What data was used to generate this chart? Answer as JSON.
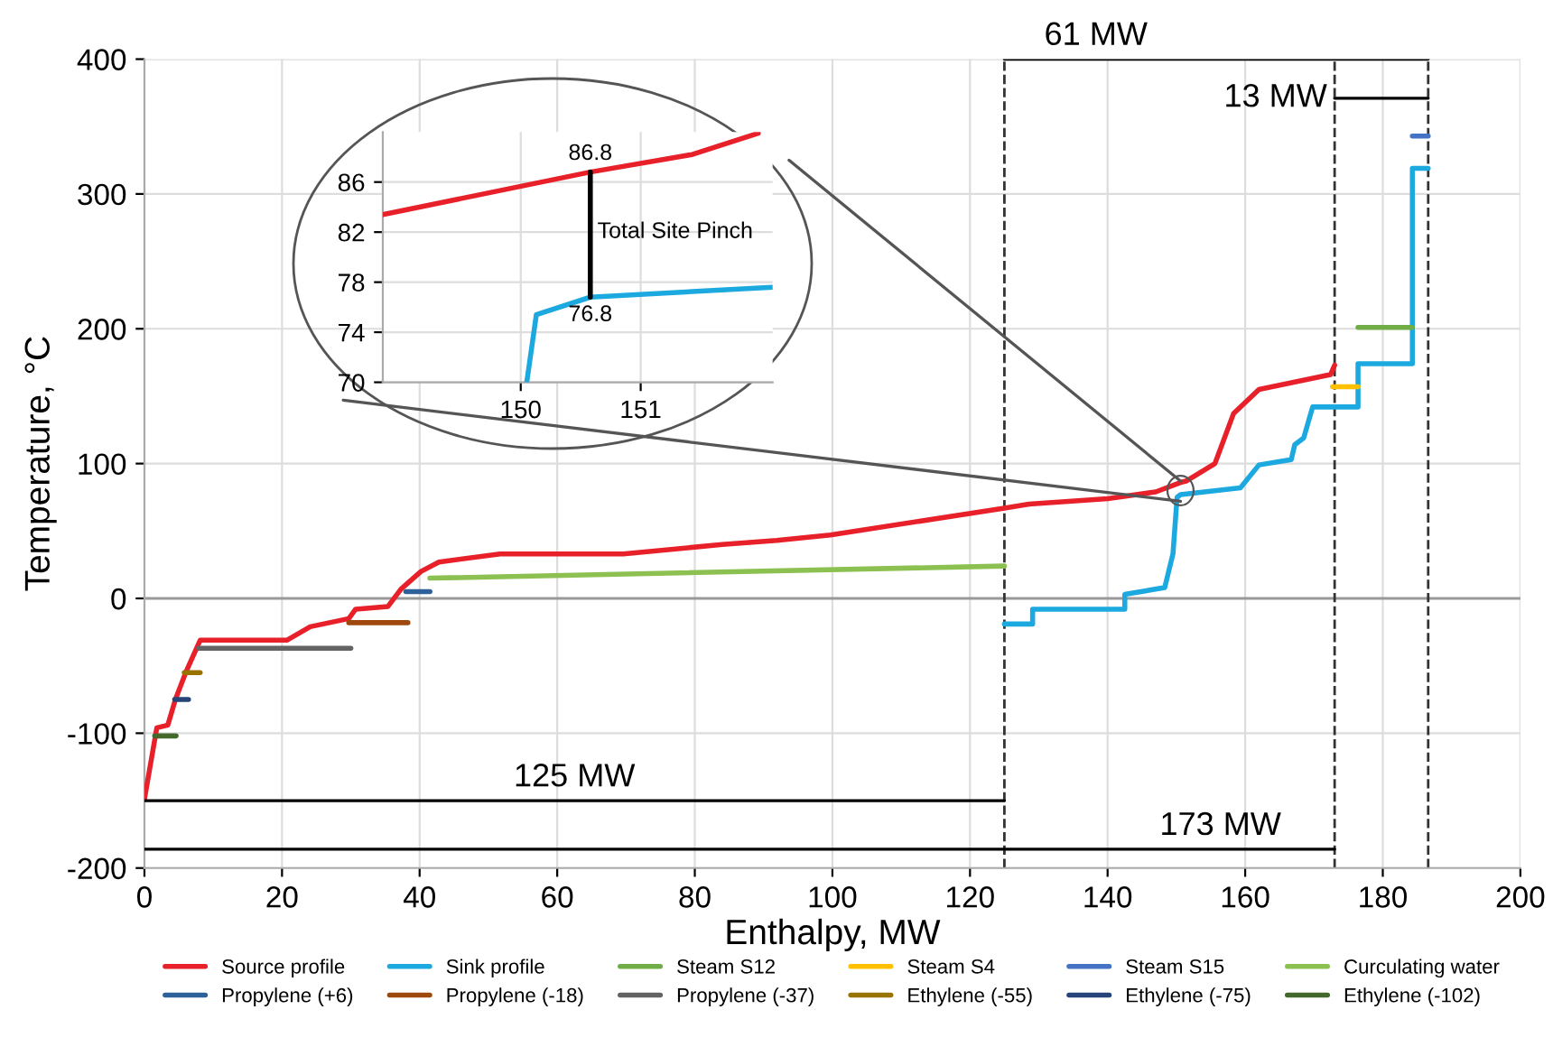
{
  "chart_data": [
    {
      "type": "line",
      "xlabel": "Enthalpy, MW",
      "ylabel": "Temperature, °C",
      "xlim": [
        0,
        200
      ],
      "xticks": [
        0,
        20,
        40,
        60,
        80,
        100,
        120,
        140,
        160,
        180,
        200
      ],
      "ylim": [
        -200,
        400
      ],
      "yticks": [
        -200,
        -100,
        0,
        100,
        200,
        300,
        400
      ],
      "grid": true,
      "legend": "bottom",
      "series": [
        {
          "name": "Source profile",
          "color": "#e8202a",
          "x": [
            0,
            1.8,
            3.4,
            4.5,
            6,
            8.1,
            20.7,
            24.1,
            29.7,
            30.7,
            35.4,
            37.3,
            40.2,
            42.8,
            51.7,
            69.6,
            84,
            91.9,
            99.7,
            125,
            128.6,
            140,
            147,
            150.6,
            151.4,
            155.6,
            158.3,
            162,
            172.4,
            173
          ],
          "values": [
            -149,
            -96,
            -94,
            -75,
            -55,
            -31,
            -31,
            -21,
            -15,
            -8,
            -6,
            7,
            20,
            27,
            33,
            33,
            40,
            43,
            47,
            67,
            70,
            74,
            79,
            86,
            87,
            100,
            137,
            155,
            166,
            173
          ]
        },
        {
          "name": "Sink profile",
          "color": "#1ba9e0",
          "x": [
            125,
            129.1,
            129.1,
            142.5,
            142.5,
            148.3,
            149.5,
            150.1,
            150.6,
            159.3,
            162,
            166.7,
            167.2,
            168.5,
            169.8,
            176.4,
            176.4,
            184.3,
            184.3,
            186.6
          ],
          "values": [
            -19,
            -19,
            -8,
            -8,
            3,
            8,
            33,
            75,
            77,
            82,
            99,
            103,
            114,
            119,
            142,
            142,
            174,
            174,
            319,
            319
          ]
        },
        {
          "name": "Steam S12",
          "color": "#70ad47",
          "x": [
            176.4,
            184.3
          ],
          "values": [
            201,
            201
          ]
        },
        {
          "name": "Steam S4",
          "color": "#ffc000",
          "x": [
            172.7,
            176.4
          ],
          "values": [
            157,
            157
          ]
        },
        {
          "name": "Steam S15",
          "color": "#4472c4",
          "x": [
            184.3,
            186.6
          ],
          "values": [
            343,
            343
          ]
        },
        {
          "name": "Curculating water",
          "color": "#8cc152",
          "x": [
            41.5,
            125
          ],
          "values": [
            15,
            24
          ]
        },
        {
          "name": "Propylene (+6)",
          "color": "#2e6099",
          "x": [
            38,
            41.5
          ],
          "values": [
            5,
            5
          ]
        },
        {
          "name": "Propylene (-18)",
          "color": "#9e480e",
          "x": [
            29.7,
            38.3
          ],
          "values": [
            -18,
            -18
          ]
        },
        {
          "name": "Propylene (-37)",
          "color": "#636363",
          "x": [
            7.9,
            30
          ],
          "values": [
            -37,
            -37
          ]
        },
        {
          "name": "Ethylene (-55)",
          "color": "#997300",
          "x": [
            5.8,
            8.1
          ],
          "values": [
            -55,
            -55
          ]
        },
        {
          "name": "Ethylene (-75)",
          "color": "#264478",
          "x": [
            4.4,
            6.4
          ],
          "values": [
            -75,
            -75
          ]
        },
        {
          "name": "Ethylene (-102)",
          "color": "#43682b",
          "x": [
            1.5,
            4.6
          ],
          "values": [
            -102,
            -102
          ]
        },
        {
          "color": "#555555",
          "x": [
            93.7,
            150.6
          ],
          "values": [
            325,
            87
          ]
        },
        {
          "color": "#555555",
          "x": [
            28.9,
            150.6
          ],
          "values": [
            147,
            72
          ]
        },
        {
          "color": "#000000",
          "x": [
            125,
            186.6
          ],
          "values": [
            400,
            400
          ]
        },
        {
          "color": "#000000",
          "x": [
            173,
            186.6
          ],
          "values": [
            371,
            371
          ]
        },
        {
          "color": "#000000",
          "x": [
            0,
            125
          ],
          "values": [
            -150,
            -150
          ]
        },
        {
          "color": "#000000",
          "x": [
            0,
            173
          ],
          "values": [
            -186,
            -186
          ]
        }
      ],
      "ref_lines": [
        {
          "axis": "y",
          "value": 0,
          "color": "#999999",
          "line_style": "solid"
        },
        {
          "axis": "x",
          "value": 125,
          "color": "#333333",
          "line_style": "dashed"
        },
        {
          "axis": "x",
          "value": 173,
          "color": "#333333",
          "line_style": "dashed"
        },
        {
          "axis": "x",
          "value": 186.6,
          "color": "#333333",
          "line_style": "dashed"
        }
      ],
      "annotations": [
        {
          "text": "61 MW",
          "x": 138.3,
          "y": 400
        },
        "13 MW",
        {
          "text": "125 MW",
          "x": 62.5,
          "y": -150
        },
        {
          "text": "173 MW",
          "x": 156.4,
          "y": -186
        }
      ]
    },
    {
      "type": "line",
      "xlim": [
        148.85,
        152.1
      ],
      "xticks": [
        150,
        151
      ],
      "ylim": [
        70,
        90
      ],
      "yticks": [
        70,
        74,
        78,
        82,
        86
      ],
      "grid": true,
      "series": [
        {
          "color": "#e8202a",
          "x": [
            148.85,
            150.58,
            151.43,
            151.98
          ],
          "values": [
            83.4,
            86.8,
            88.2,
            89.9
          ]
        },
        {
          "color": "#1ba9e0",
          "x": [
            150.05,
            150.13,
            150.58,
            152.1
          ],
          "values": [
            70,
            75.4,
            76.8,
            77.6
          ]
        },
        {
          "color": "#000000",
          "x": [
            150.58,
            150.58
          ],
          "values": [
            76.8,
            86.8
          ]
        }
      ],
      "annotations": [
        {
          "text": "86.8",
          "x": 150.58,
          "y": 86.8
        },
        {
          "text": "76.8",
          "x": 150.58,
          "y": 76.8
        },
        "Total Site Pinch"
      ]
    }
  ]
}
